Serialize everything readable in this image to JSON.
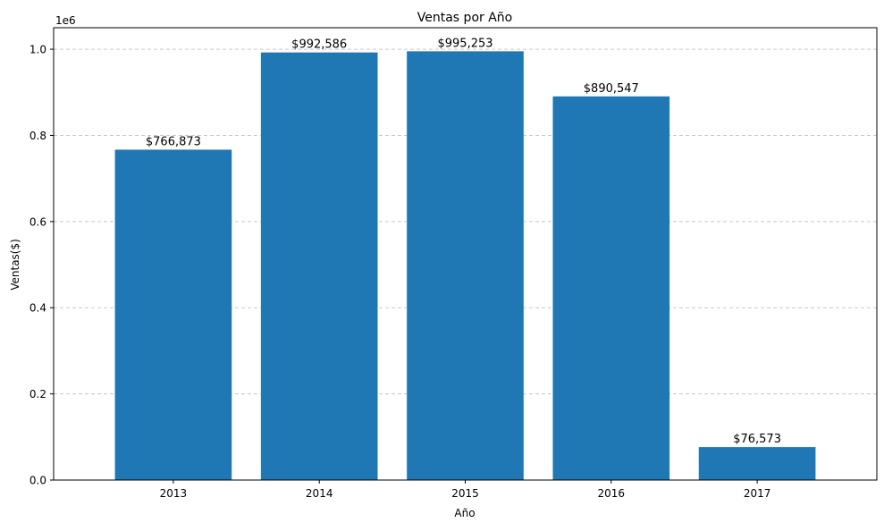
{
  "chart_data": {
    "type": "bar",
    "title": "Ventas por Año",
    "xlabel": "Año",
    "ylabel": "Ventas($)",
    "y_offset_label": "1e6",
    "categories": [
      "2013",
      "2014",
      "2015",
      "2016",
      "2017"
    ],
    "values": [
      766873,
      992586,
      995253,
      890547,
      76573
    ],
    "value_labels": [
      "$766,873",
      "$992,586",
      "$995,253",
      "$890,547",
      "$76,573"
    ],
    "ylim": [
      0,
      1050000
    ],
    "yticks": [
      0,
      200000,
      400000,
      600000,
      800000,
      1000000
    ],
    "ytick_labels": [
      "0.0",
      "0.2",
      "0.4",
      "0.6",
      "0.8",
      "1.0"
    ],
    "grid": {
      "axis": "y",
      "style": "dashed"
    },
    "bar_color": "#1f77b4",
    "grid_color": "#c8c8c8"
  }
}
